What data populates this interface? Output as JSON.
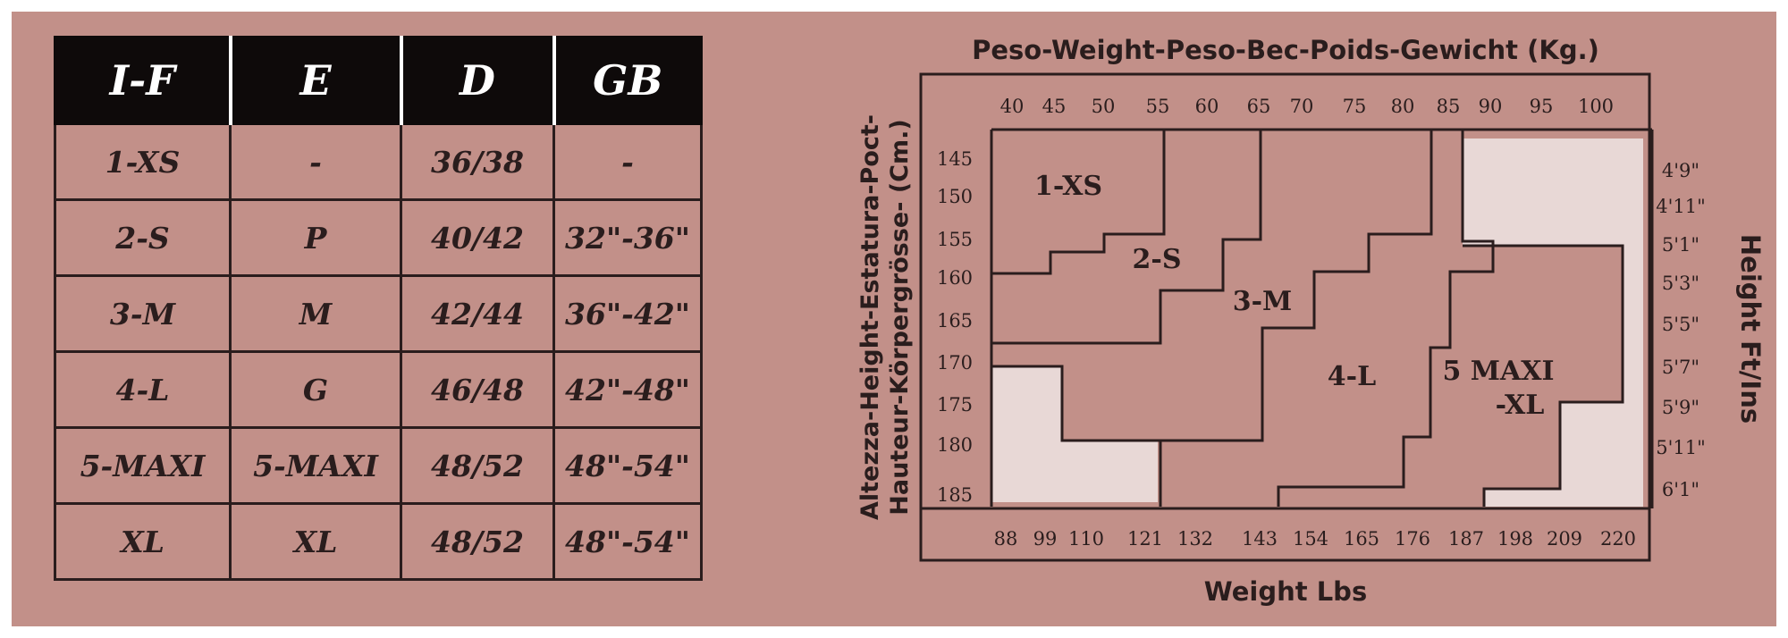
{
  "table": {
    "headers": [
      "I-F",
      "E",
      "D",
      "GB"
    ],
    "rows": [
      [
        "1-XS",
        "-",
        "36/38",
        "-"
      ],
      [
        "2-S",
        "P",
        "40/42",
        "32\"-36\""
      ],
      [
        "3-M",
        "M",
        "42/44",
        "36\"-42\""
      ],
      [
        "4-L",
        "G",
        "46/48",
        "42\"-48\""
      ],
      [
        "5-MAXI",
        "5-MAXI",
        "48/52",
        "48\"-54\""
      ],
      [
        "XL",
        "XL",
        "48/52",
        "48\"-54\""
      ]
    ]
  },
  "chart": {
    "title": "Peso-Weight-Peso-Bec-Poids-Gewicht (Kg.)",
    "ylabel_line1": "Altezza-Height-Estatura-Poct-",
    "ylabel_line2": "Hauteur-Körpergrösse- (Cm.)",
    "xlabel": "Weight Lbs",
    "right_label": "Height Ft/Ins",
    "kg_ticks": [
      "40",
      "45",
      "50",
      "55",
      "60",
      "65",
      "70",
      "75",
      "80",
      "85",
      "90",
      "95",
      "100"
    ],
    "cm_ticks": [
      "145",
      "150",
      "155",
      "160",
      "165",
      "170",
      "175",
      "180",
      "185"
    ],
    "lbs_ticks": [
      "88",
      "99",
      "110",
      "121",
      "132",
      "143",
      "154",
      "165",
      "176",
      "187",
      "198",
      "209",
      "220"
    ],
    "ftin_ticks": [
      "4'9\"",
      "4'11\"",
      "5'1\"",
      "5'3\"",
      "5'5\"",
      "5'7\"",
      "5'9\"",
      "5'11\"",
      "6'1\""
    ],
    "zones": {
      "xs": "1-XS",
      "s": "2-S",
      "m": "3-M",
      "l": "4-L",
      "maxi_line1": "5 MAXI",
      "maxi_line2": "-XL"
    },
    "colors": {
      "background": "#c29089",
      "ink": "#2a1d1d",
      "excluded": "#e8d8d6"
    }
  }
}
